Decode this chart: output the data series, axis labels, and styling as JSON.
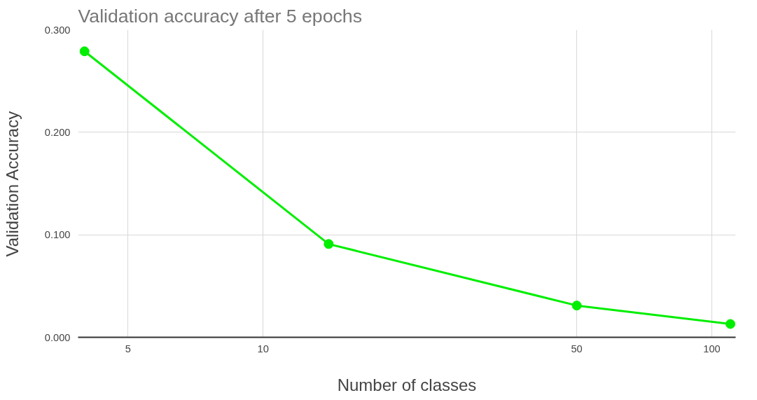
{
  "chart_data": {
    "type": "line",
    "title": "Validation accuracy after 5 epochs",
    "xlabel": "Number of classes",
    "ylabel": "Validation Accuracy",
    "x": [
      4,
      14,
      50,
      110
    ],
    "series": [
      {
        "color": "#00ee00",
        "values": [
          0.279,
          0.091,
          0.031,
          0.013
        ]
      }
    ],
    "log": "x",
    "xlim": [
      3.87,
      113
    ],
    "xticks": [
      5,
      10,
      50,
      100
    ],
    "ylim": [
      0,
      0.3
    ],
    "yticks": [
      {
        "value": 0,
        "label": "0.000"
      },
      {
        "value": 0.1,
        "label": "0.100"
      },
      {
        "value": 0.2,
        "label": "0.200"
      },
      {
        "value": 0.3,
        "label": "0.300"
      }
    ],
    "grid": true,
    "marker": "circle",
    "line_style": "solid"
  }
}
